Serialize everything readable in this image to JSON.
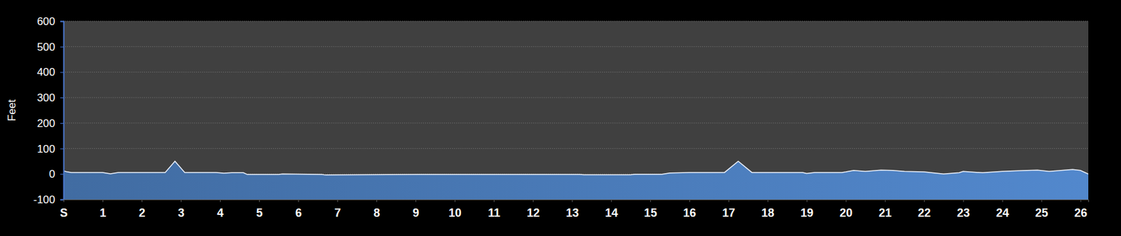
{
  "chart_data": {
    "type": "area",
    "y_label": "Feet",
    "x": [
      0,
      0.1,
      0.2,
      1.0,
      1.2,
      1.4,
      2.6,
      2.85,
      3.1,
      3.9,
      4.1,
      4.3,
      4.6,
      4.7,
      5.5,
      5.6,
      6.6,
      6.7,
      9.1,
      13.2,
      13.3,
      14.5,
      14.6,
      15.3,
      15.5,
      16.0,
      16.9,
      17.25,
      17.6,
      18.9,
      19.0,
      19.2,
      19.9,
      20.0,
      20.2,
      20.5,
      20.9,
      21.2,
      21.5,
      22.0,
      22.5,
      22.9,
      23.0,
      23.5,
      24.0,
      24.5,
      24.9,
      25.2,
      25.5,
      25.8,
      26.0,
      26.2
    ],
    "values": [
      12,
      8,
      6,
      6,
      1,
      6,
      6,
      50,
      6,
      6,
      3,
      5,
      5,
      -2,
      -2,
      0,
      -2,
      -4,
      -2,
      -2,
      -3,
      -3,
      -1,
      -1,
      4,
      6,
      6,
      50,
      6,
      6,
      2,
      6,
      6,
      8,
      14,
      10,
      15,
      14,
      10,
      8,
      0,
      5,
      10,
      5,
      10,
      13,
      15,
      10,
      14,
      18,
      14,
      0
    ],
    "color": "#4a7ab8",
    "xlim": [
      0,
      26.2
    ],
    "xticks": [
      {
        "value": 0,
        "label": "S"
      },
      1,
      2,
      3,
      4,
      5,
      6,
      7,
      8,
      9,
      10,
      11,
      12,
      13,
      14,
      15,
      16,
      17,
      18,
      19,
      20,
      21,
      22,
      23,
      24,
      25,
      26
    ],
    "ylim": [
      -100,
      600
    ],
    "yticks": [
      -100,
      0,
      100,
      200,
      300,
      400,
      500,
      600
    ],
    "grid": true
  }
}
